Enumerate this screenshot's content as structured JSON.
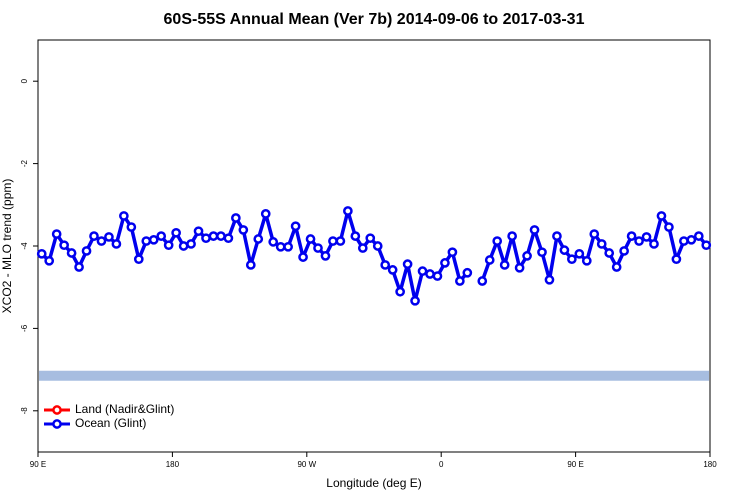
{
  "chart_data": {
    "type": "line",
    "title": "60S-55S Annual Mean (Ver 7b)   2014-09-06 to 2017-03-31",
    "x_label": "Longitude (deg E)",
    "y_label": "XCO2 - MLO trend (ppm)",
    "xlim": [
      90,
      540
    ],
    "ylim": [
      -9,
      1
    ],
    "xticks": [
      {
        "value": 90,
        "label": "90 E"
      },
      {
        "value": 180,
        "label": "180"
      },
      {
        "value": 270,
        "label": "90 W"
      },
      {
        "value": 360,
        "label": "0"
      },
      {
        "value": 450,
        "label": "90 E"
      },
      {
        "value": 540,
        "label": "180"
      }
    ],
    "yticks": [
      -8,
      -6,
      -4,
      -2,
      0
    ],
    "legend": "bottom-left",
    "hline": {
      "value": -7.15,
      "color": "#a7bde0"
    },
    "series": [
      {
        "name": "Land (Nadir&Glint)",
        "color": "#ff0000",
        "x": [],
        "values": []
      },
      {
        "name": "Ocean (Glint)",
        "color": "#0000ee",
        "x": [
          92.5,
          97.5,
          102.5,
          107.5,
          112.5,
          117.5,
          122.5,
          127.5,
          132.5,
          137.5,
          142.5,
          147.5,
          152.5,
          157.5,
          162.5,
          167.5,
          172.5,
          177.5,
          182.5,
          187.5,
          192.5,
          197.5,
          202.5,
          207.5,
          212.5,
          217.5,
          222.5,
          227.5,
          232.5,
          237.5,
          242.5,
          247.5,
          252.5,
          257.5,
          262.5,
          267.5,
          272.5,
          277.5,
          282.5,
          287.5,
          292.5,
          297.5,
          302.5,
          307.5,
          312.5,
          317.5,
          322.5,
          327.5,
          332.5,
          337.5,
          342.5,
          347.5,
          352.5,
          357.5,
          362.5,
          367.5,
          372.5,
          377.5,
          382.5,
          387.5,
          392.5,
          397.5,
          402.5,
          407.5,
          412.5,
          417.5,
          422.5,
          427.5,
          432.5,
          437.5,
          442.5,
          447.5,
          452.5,
          457.5,
          462.5,
          467.5,
          472.5,
          477.5,
          482.5,
          487.5,
          492.5,
          497.5,
          502.5,
          507.5,
          512.5,
          517.5,
          522.5,
          527.5,
          532.5,
          537.5
        ],
        "values": [
          -4.19,
          -4.36,
          -3.71,
          -3.98,
          -4.17,
          -4.51,
          -4.12,
          -3.76,
          -3.88,
          -3.78,
          -3.95,
          -3.27,
          -3.54,
          -4.32,
          -3.88,
          -3.85,
          -3.76,
          -3.98,
          -3.68,
          -4.0,
          -3.95,
          -3.64,
          -3.81,
          -3.76,
          -3.76,
          -3.81,
          -3.32,
          -3.61,
          -4.46,
          -3.83,
          -3.22,
          -3.9,
          -4.02,
          -4.02,
          -3.52,
          -4.27,
          -3.83,
          -4.05,
          -4.24,
          -3.88,
          -3.88,
          -3.15,
          -3.76,
          -4.05,
          -3.81,
          -4.0,
          -4.46,
          -4.58,
          -5.11,
          -4.44,
          -5.33,
          -4.61,
          -4.68,
          -4.73,
          -4.41,
          -4.15,
          -4.85,
          -4.65,
          null,
          -4.85,
          -4.34,
          -3.88,
          -4.46,
          -3.76,
          -4.53,
          -4.24,
          -3.61,
          -4.15,
          -4.82,
          -3.76,
          -4.1,
          -4.32,
          -4.19,
          -4.36,
          -3.71,
          -3.95,
          -4.17,
          -4.51,
          -4.12,
          -3.76,
          -3.88,
          -3.78,
          -3.95,
          -3.27,
          -3.54,
          -4.32,
          -3.88,
          -3.85,
          -3.76,
          -3.98
        ]
      }
    ]
  }
}
